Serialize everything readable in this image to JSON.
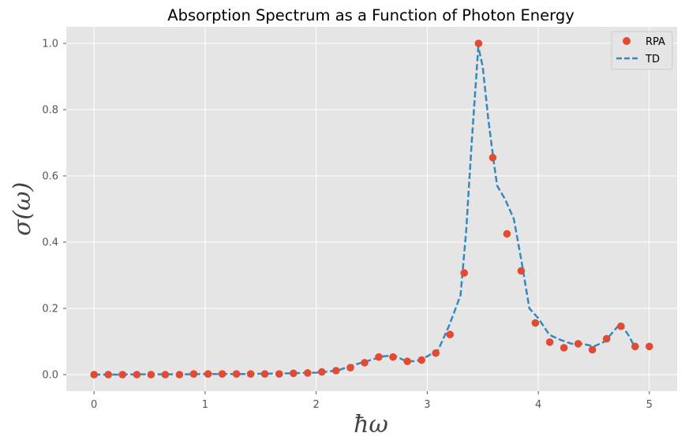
{
  "chart_data": {
    "type": "line",
    "title": "Absorption Spectrum as a Function of Photon Energy",
    "xlabel": "ħω",
    "ylabel": "σ(ω)",
    "xlim": [
      -0.25,
      5.25
    ],
    "ylim": [
      -0.05,
      1.05
    ],
    "xticks": [
      0,
      1,
      2,
      3,
      4,
      5
    ],
    "yticks": [
      0.0,
      0.2,
      0.4,
      0.6,
      0.8,
      1.0
    ],
    "xtick_labels": [
      "0",
      "1",
      "2",
      "3",
      "4",
      "5"
    ],
    "ytick_labels": [
      "0.0",
      "0.2",
      "0.4",
      "0.6",
      "0.8",
      "1.0"
    ],
    "grid": true,
    "legend_position": "top-right",
    "series": [
      {
        "name": "RPA",
        "style": "markers",
        "color": "#E24A33",
        "x": [
          0.0,
          0.128,
          0.256,
          0.385,
          0.513,
          0.641,
          0.769,
          0.897,
          1.026,
          1.154,
          1.282,
          1.41,
          1.538,
          1.667,
          1.795,
          1.923,
          2.051,
          2.179,
          2.308,
          2.436,
          2.564,
          2.692,
          2.821,
          2.949,
          3.077,
          3.205,
          3.333,
          3.462,
          3.59,
          3.718,
          3.846,
          3.974,
          4.103,
          4.231,
          4.359,
          4.487,
          4.615,
          4.744,
          4.872,
          5.0
        ],
        "y": [
          0.0,
          0.0,
          0.0,
          0.0,
          0.0,
          0.0,
          0.0,
          0.002,
          0.002,
          0.002,
          0.002,
          0.002,
          0.002,
          0.002,
          0.004,
          0.005,
          0.008,
          0.012,
          0.021,
          0.036,
          0.053,
          0.053,
          0.04,
          0.044,
          0.065,
          0.121,
          0.307,
          1.0,
          0.655,
          0.425,
          0.313,
          0.156,
          0.098,
          0.081,
          0.093,
          0.075,
          0.108,
          0.146,
          0.085,
          0.085
        ]
      },
      {
        "name": "TD",
        "style": "dashed-line",
        "color": "#348ABD",
        "x": [
          0.0,
          0.2,
          0.4,
          0.6,
          0.8,
          1.0,
          1.2,
          1.4,
          1.6,
          1.8,
          2.0,
          2.1,
          2.2,
          2.3,
          2.4,
          2.5,
          2.6,
          2.7,
          2.8,
          2.9,
          3.0,
          3.1,
          3.2,
          3.3,
          3.35,
          3.4,
          3.46,
          3.5,
          3.55,
          3.6,
          3.63,
          3.7,
          3.78,
          3.85,
          3.92,
          4.0,
          4.1,
          4.2,
          4.3,
          4.4,
          4.5,
          4.6,
          4.74,
          4.82,
          4.88
        ],
        "y": [
          0.0,
          0.0,
          0.001,
          0.001,
          0.001,
          0.002,
          0.002,
          0.002,
          0.003,
          0.004,
          0.006,
          0.009,
          0.013,
          0.025,
          0.035,
          0.045,
          0.055,
          0.058,
          0.042,
          0.04,
          0.055,
          0.075,
          0.15,
          0.24,
          0.43,
          0.7,
          0.99,
          0.93,
          0.77,
          0.64,
          0.57,
          0.53,
          0.47,
          0.34,
          0.2,
          0.17,
          0.12,
          0.105,
          0.093,
          0.093,
          0.085,
          0.1,
          0.155,
          0.115,
          0.075
        ]
      }
    ]
  }
}
